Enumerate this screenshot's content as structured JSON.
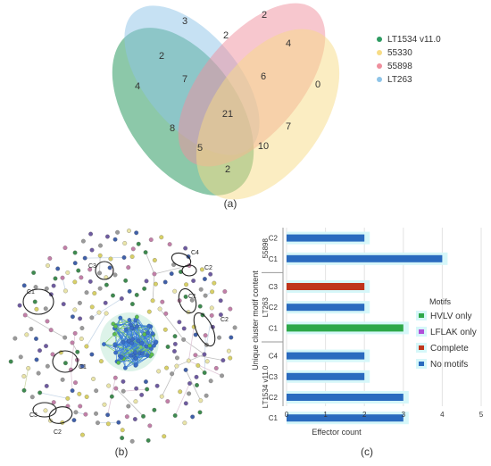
{
  "panels": {
    "a": "(a)",
    "b": "(b)",
    "c": "(c)"
  },
  "venn": {
    "sets": [
      {
        "name": "LT1534 v11.0",
        "color": "#2e9b62"
      },
      {
        "name": "55330",
        "color": "#f7dc86"
      },
      {
        "name": "55898",
        "color": "#ef8f9d"
      },
      {
        "name": "LT263",
        "color": "#8ec4e8"
      }
    ],
    "regions": [
      "3",
      "2",
      "2",
      "4",
      "2",
      "7",
      "6",
      "0",
      "4",
      "21",
      "8",
      "7",
      "5",
      "10",
      "2"
    ]
  },
  "network": {
    "labels": [
      "C4",
      "C2",
      "C3",
      "C1",
      "C1",
      "C2",
      "C1",
      "C3",
      "C2"
    ]
  },
  "chart_data": {
    "type": "bar",
    "orientation": "horizontal",
    "xlabel": "Effector count",
    "ylabel": "Unique cluster motif content",
    "xlim": [
      0,
      5
    ],
    "xticks": [
      "0",
      "1",
      "2",
      "3",
      "4",
      "5"
    ],
    "groups": [
      {
        "name": "55898",
        "rows": [
          "C2",
          "C1"
        ]
      },
      {
        "name": "LT263",
        "rows": [
          "C3",
          "C2",
          "C1"
        ]
      },
      {
        "name": "LT1534 v11.0",
        "rows": [
          "C4",
          "C3",
          "C2",
          "C1"
        ]
      }
    ],
    "series": [
      {
        "name": "HVLV only",
        "color": "#2ea84a",
        "values": [
          0,
          0,
          0,
          0,
          3,
          0,
          0,
          0,
          0
        ]
      },
      {
        "name": "LFLAK only",
        "color": "#b04fd8",
        "values": [
          0,
          0,
          0,
          0,
          0,
          0,
          0,
          0,
          0
        ]
      },
      {
        "name": "Complete",
        "color": "#c0361c",
        "values": [
          0,
          0,
          2,
          0,
          0,
          0,
          0,
          0,
          0
        ]
      },
      {
        "name": "No motifs",
        "color": "#2a6bbf",
        "values": [
          2,
          4,
          0,
          2,
          0,
          2,
          2,
          3,
          3
        ]
      }
    ],
    "legend": {
      "title": "Motifs",
      "position": "right"
    }
  }
}
